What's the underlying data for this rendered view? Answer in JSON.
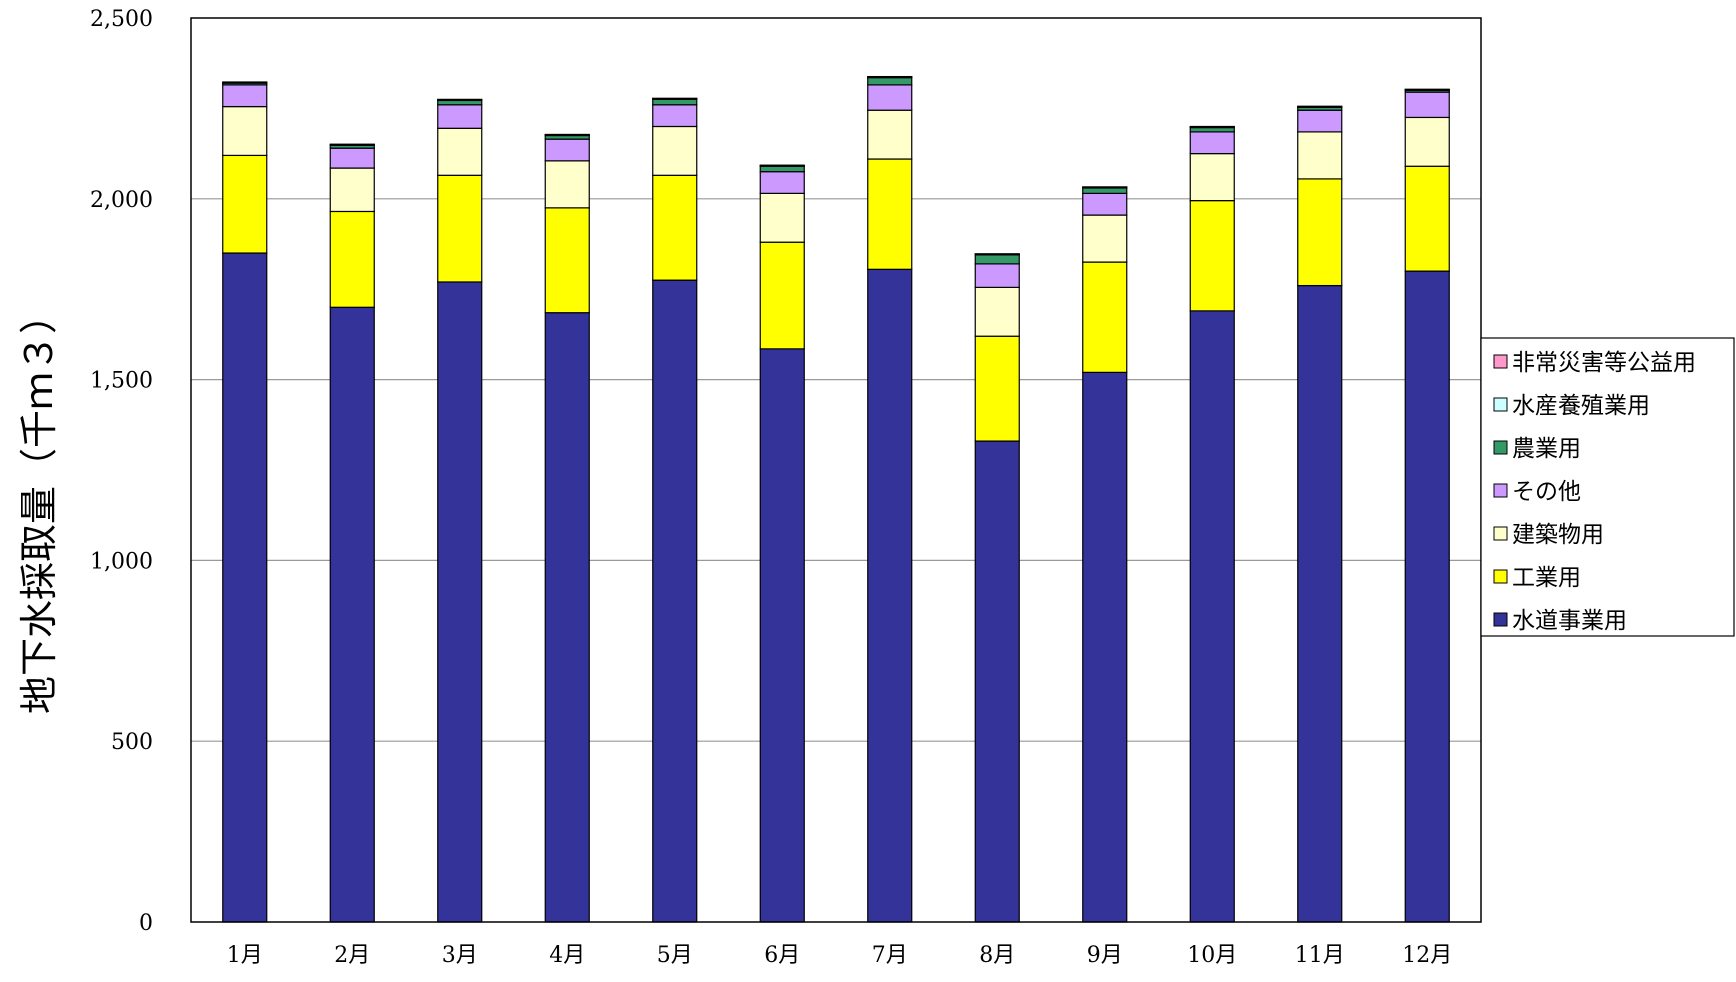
{
  "chart_data": {
    "type": "bar",
    "stacked": true,
    "title": "",
    "xlabel": "",
    "ylabel": "地下水採取量（千ｍ３）",
    "ylim": [
      0,
      2500
    ],
    "yticks": [
      0,
      500,
      1000,
      1500,
      2000,
      2500
    ],
    "ytick_labels": [
      "0",
      "500",
      "1,000",
      "1,500",
      "2,000",
      "2,500"
    ],
    "grid": true,
    "legend_position": "right",
    "categories": [
      "1月",
      "2月",
      "3月",
      "4月",
      "5月",
      "6月",
      "7月",
      "8月",
      "9月",
      "10月",
      "11月",
      "12月"
    ],
    "series": [
      {
        "name": "水道事業用",
        "color": "#333399",
        "values": [
          1850,
          1700,
          1770,
          1685,
          1775,
          1585,
          1805,
          1330,
          1520,
          1690,
          1760,
          1800
        ]
      },
      {
        "name": "工業用",
        "color": "#FFFF00",
        "values": [
          270,
          265,
          295,
          290,
          290,
          295,
          305,
          290,
          305,
          305,
          295,
          290
        ]
      },
      {
        "name": "建築物用",
        "color": "#FFFFCC",
        "values": [
          135,
          120,
          130,
          130,
          135,
          135,
          135,
          135,
          130,
          130,
          130,
          135
        ]
      },
      {
        "name": "その他",
        "color": "#CC99FF",
        "values": [
          60,
          55,
          65,
          60,
          60,
          60,
          70,
          65,
          60,
          60,
          60,
          70
        ]
      },
      {
        "name": "農業用",
        "color": "#339966",
        "values": [
          5,
          8,
          12,
          10,
          15,
          15,
          20,
          25,
          15,
          12,
          8,
          5
        ]
      },
      {
        "name": "水産養殖業用",
        "color": "#CCFFFF",
        "values": [
          2,
          2,
          2,
          2,
          2,
          2,
          2,
          2,
          2,
          2,
          2,
          2
        ]
      },
      {
        "name": "非常災害等公益用",
        "color": "#FF99CC",
        "values": [
          1,
          1,
          1,
          1,
          1,
          1,
          1,
          1,
          1,
          1,
          1,
          1
        ]
      }
    ]
  }
}
